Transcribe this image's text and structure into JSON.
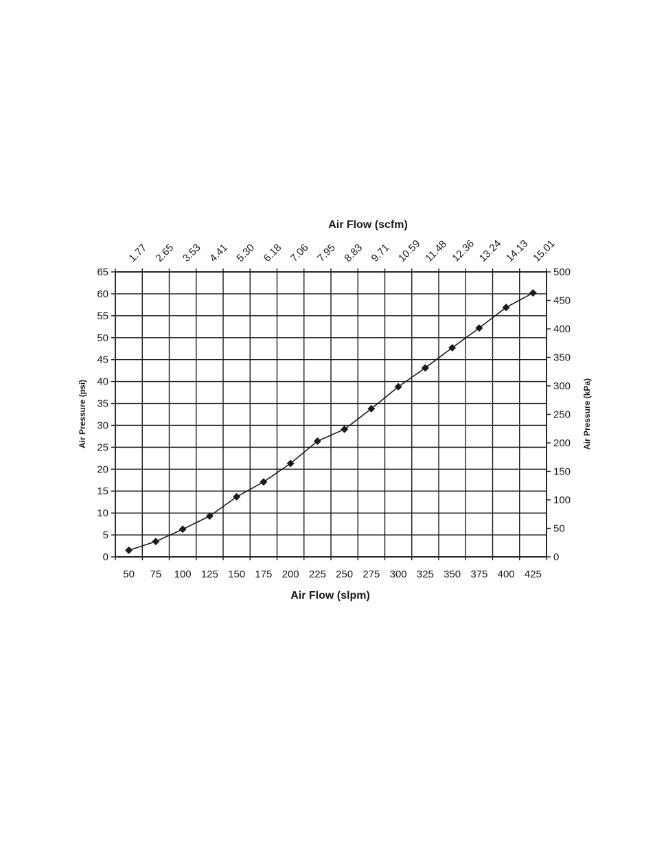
{
  "chart_data": {
    "type": "line",
    "xlabel": "Air Flow (slpm)",
    "x2label": "Air Flow (scfm)",
    "ylabel": "Air Pressure (psi)",
    "y2label": "Air Pressure (kPa)",
    "x": [
      50,
      75,
      100,
      125,
      150,
      175,
      200,
      225,
      250,
      275,
      300,
      325,
      350,
      375,
      400,
      425
    ],
    "x_tick_labels": [
      "50",
      "75",
      "100",
      "125",
      "150",
      "175",
      "200",
      "225",
      "250",
      "275",
      "300",
      "325",
      "350",
      "375",
      "400",
      "425"
    ],
    "x2_tick_labels": [
      "1.77",
      "2.65",
      "3.53",
      "4.41",
      "5.30",
      "6.18",
      "7.06",
      "7.95",
      "8.83",
      "9.71",
      "10.59",
      "11.48",
      "12.36",
      "13.24",
      "14.13",
      "15.01"
    ],
    "y_tick_labels": [
      "0",
      "5",
      "10",
      "15",
      "20",
      "25",
      "30",
      "35",
      "40",
      "45",
      "50",
      "55",
      "60",
      "65"
    ],
    "y2_tick_labels": [
      "0",
      "50",
      "100",
      "150",
      "200",
      "250",
      "300",
      "350",
      "400",
      "450",
      "500"
    ],
    "series": [
      {
        "values": [
          1.5,
          3.5,
          6.3,
          9.3,
          13.7,
          17.1,
          21.3,
          26.4,
          29.1,
          33.8,
          38.8,
          43.1,
          47.7,
          52.2,
          56.9,
          60.2
        ]
      }
    ],
    "ylim": [
      0,
      65
    ],
    "y2lim": [
      0,
      500
    ],
    "marker": "diamond",
    "grid": true,
    "colors": {
      "line": "#1a1a1a",
      "grid": "#1a1a1a"
    }
  }
}
